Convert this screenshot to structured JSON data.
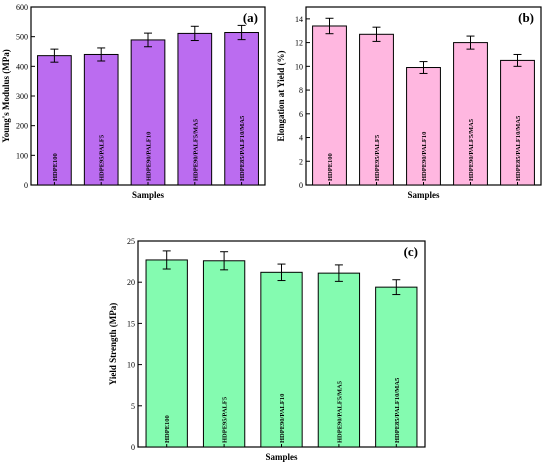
{
  "chart_data": [
    {
      "type": "bar",
      "panel": "(a)",
      "categories": [
        "HDPE100",
        "HDPE95/PALF5",
        "HDPE90/PALF10",
        "HDPE90/PALF5/MA5",
        "HDPE85/PALF10/MA5"
      ],
      "values": [
        436,
        440,
        489,
        511,
        514
      ],
      "errors": [
        22,
        22,
        23,
        24,
        24
      ],
      "xlabel": "Samples",
      "ylabel": "Young's Modulus (MPa)",
      "ylim": [
        0,
        600
      ],
      "yticks": [
        0,
        100,
        200,
        300,
        400,
        500,
        600
      ],
      "color": "#bb6cf0",
      "grid": false
    },
    {
      "type": "bar",
      "panel": "(b)",
      "categories": [
        "HDPE100",
        "HDPE95/PALF5",
        "HDPE90/PALF10",
        "HDPE90/PALF5/MA5",
        "HDPE85/PALF10/MA5"
      ],
      "values": [
        13.4,
        12.7,
        9.9,
        12.0,
        10.5
      ],
      "errors": [
        0.65,
        0.6,
        0.5,
        0.55,
        0.5
      ],
      "xlabel": "Samples",
      "ylabel": "Elongation at Yield (%)",
      "ylim": [
        0,
        15
      ],
      "yticks": [
        0,
        2,
        4,
        6,
        8,
        10,
        12,
        14
      ],
      "color": "#ffb7e0",
      "grid": false
    },
    {
      "type": "bar",
      "panel": "(c)",
      "categories": [
        "HDPE100",
        "HDPE95/PALF5",
        "HDPE90/PALF10",
        "HDPE90/PALF5/MA5",
        "HDPE85/PALF10/MA5"
      ],
      "values": [
        22.7,
        22.6,
        21.2,
        21.1,
        19.4
      ],
      "errors": [
        1.1,
        1.1,
        1.0,
        1.0,
        0.9
      ],
      "xlabel": "Samples",
      "ylabel": "Yield Strength (MPa)",
      "ylim": [
        0,
        25
      ],
      "yticks": [
        0,
        5,
        10,
        15,
        20,
        25
      ],
      "color": "#84fbb0",
      "grid": false
    }
  ]
}
